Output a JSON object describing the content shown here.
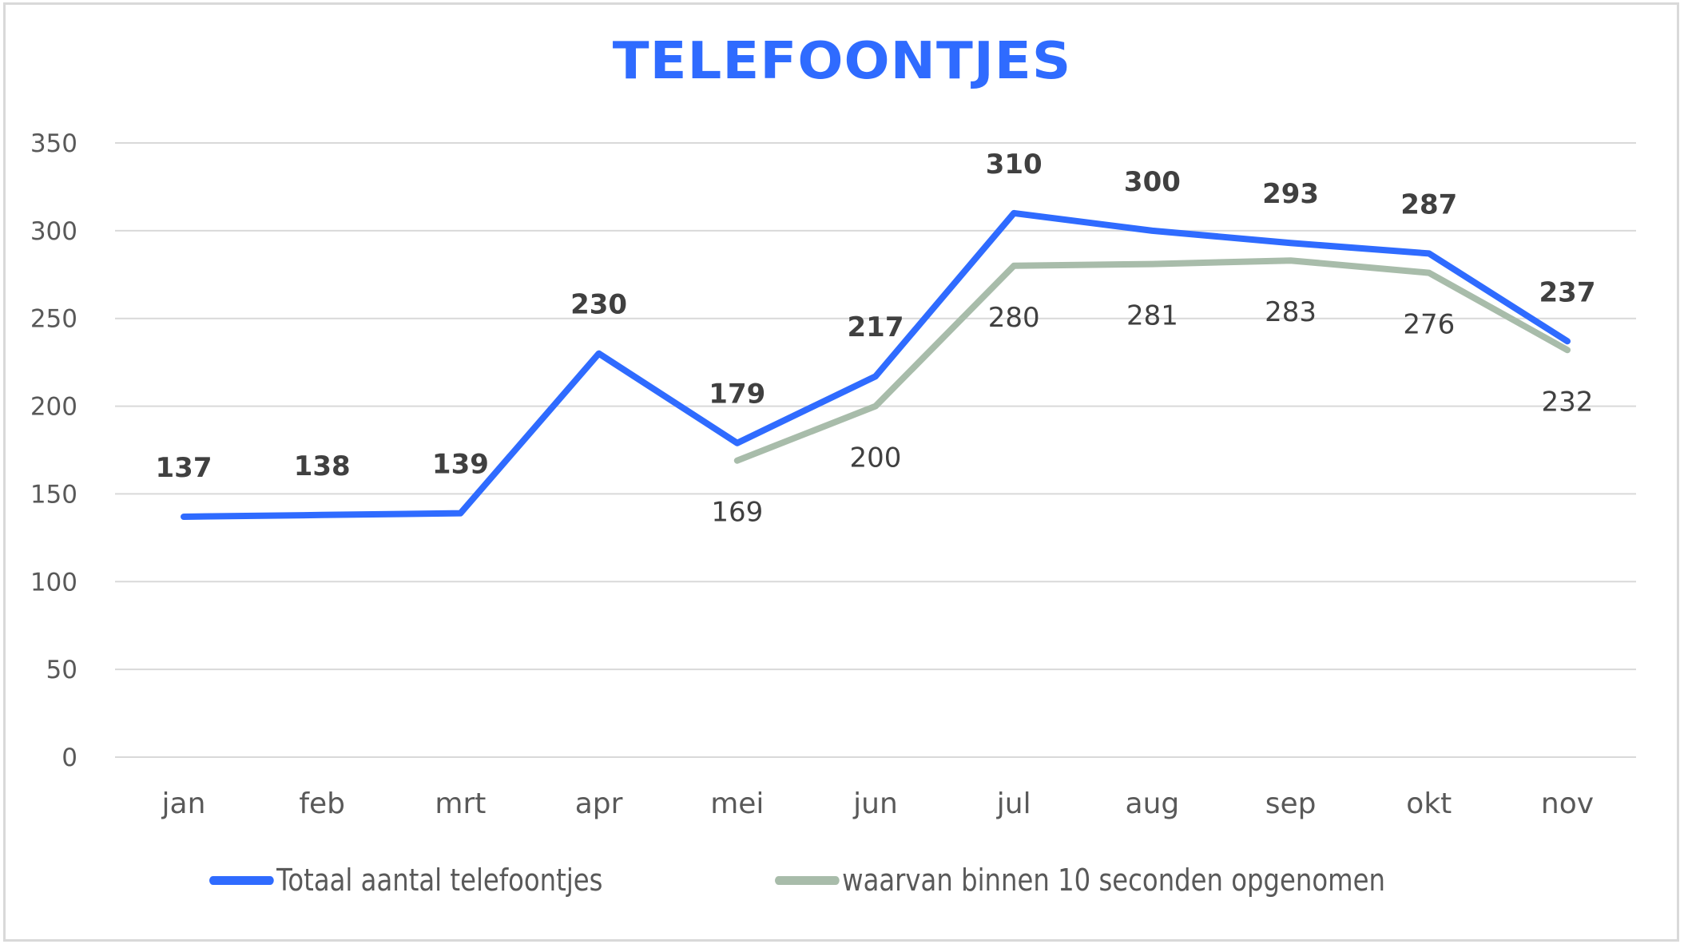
{
  "chart_data": {
    "type": "line",
    "title": "TELEFOONTJES",
    "categories": [
      "jan",
      "feb",
      "mrt",
      "apr",
      "mei",
      "jun",
      "jul",
      "aug",
      "sep",
      "okt",
      "nov"
    ],
    "ylim": [
      0,
      350
    ],
    "yticks": [
      0,
      50,
      100,
      150,
      200,
      250,
      300,
      350
    ],
    "grid": true,
    "legend_position": "bottom",
    "series": [
      {
        "name": "Totaal aantal telefoontjes",
        "color": "#2f6bff",
        "label_style": "bold-above",
        "values": [
          137,
          138,
          139,
          230,
          179,
          217,
          310,
          300,
          293,
          287,
          237
        ]
      },
      {
        "name": "waarvan binnen 10 seconden opgenomen",
        "color": "#a8bcaa",
        "label_style": "normal-below",
        "values": [
          null,
          null,
          null,
          null,
          169,
          200,
          280,
          281,
          283,
          276,
          232
        ]
      }
    ]
  }
}
